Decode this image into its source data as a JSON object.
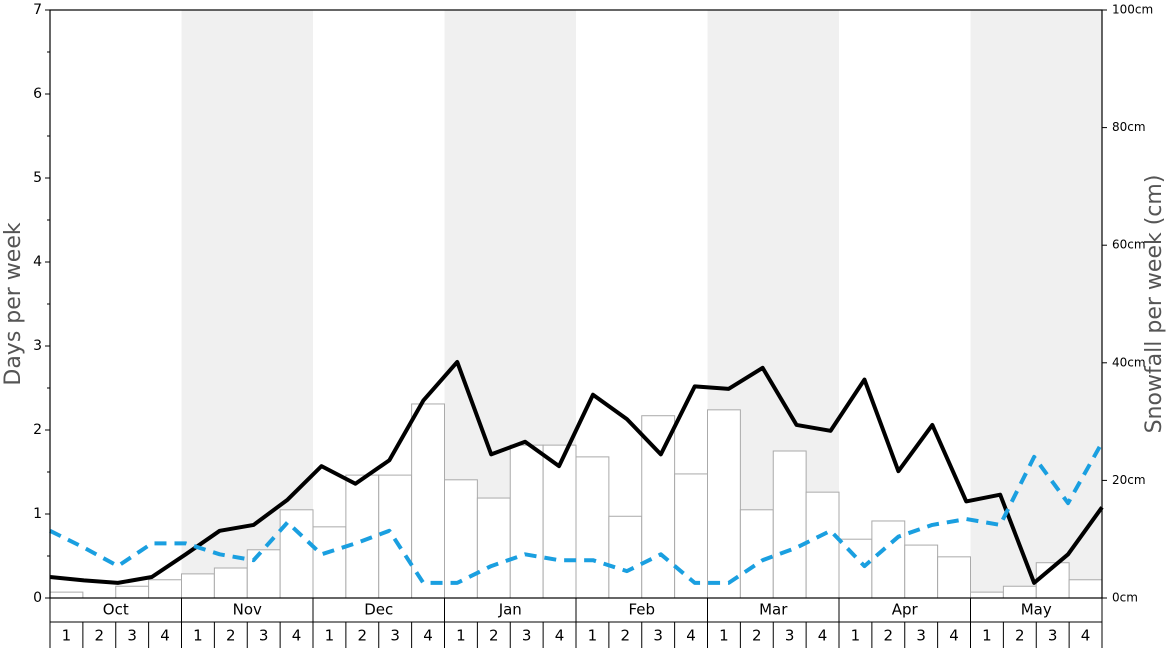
{
  "chart_data": {
    "type": "bar",
    "ylabel": "Days per week",
    "y2label": "Snowfall per week (cm)",
    "months": [
      "Oct",
      "Nov",
      "Dec",
      "Jan",
      "Feb",
      "Mar",
      "Apr",
      "May"
    ],
    "weeks": [
      "1",
      "2",
      "3",
      "4"
    ],
    "ylim": [
      0,
      7
    ],
    "yticks": [
      0,
      1,
      2,
      3,
      4,
      5,
      6,
      7
    ],
    "y2lim": [
      0,
      100
    ],
    "y2ticks": [
      {
        "value": 0,
        "label": "0cm"
      },
      {
        "value": 20,
        "label": "20cm"
      },
      {
        "value": 40,
        "label": "40cm"
      },
      {
        "value": 60,
        "label": "60cm"
      },
      {
        "value": 80,
        "label": "80cm"
      },
      {
        "value": 100,
        "label": "100cm"
      }
    ],
    "band_color": "#f0f0f0",
    "series": [
      {
        "type": "bar",
        "axis": "y2",
        "color": "#ffffff",
        "edge": "#aaaaaa",
        "values": [
          1.0,
          0,
          2.0,
          3.1,
          4.1,
          5.1,
          8.2,
          15.0,
          12.1,
          20.9,
          20.9,
          33.0,
          20.1,
          17.0,
          26.0,
          26.0,
          24.0,
          13.9,
          31.0,
          21.1,
          32.0,
          15.0,
          25.0,
          18.0,
          10.0,
          13.1,
          9.0,
          7.0,
          1.0,
          2.0,
          6.0,
          3.1
        ]
      },
      {
        "type": "line",
        "axis": "y",
        "color": "#000000",
        "dashed": false,
        "values": [
          0.25,
          0.21,
          0.18,
          0.25,
          0.52,
          0.8,
          0.87,
          1.17,
          1.57,
          1.36,
          1.64,
          2.35,
          2.81,
          1.71,
          1.86,
          1.57,
          2.42,
          2.13,
          1.71,
          2.52,
          2.49,
          2.74,
          2.06,
          1.99,
          2.6,
          1.51,
          2.06,
          1.15,
          1.23,
          0.18,
          0.52,
          1.08
        ]
      },
      {
        "type": "line",
        "axis": "y",
        "color": "#1a9fe0",
        "dashed": true,
        "values": [
          0.8,
          0.6,
          0.38,
          0.65,
          0.65,
          0.52,
          0.45,
          0.9,
          0.52,
          0.65,
          0.8,
          0.18,
          0.18,
          0.38,
          0.52,
          0.45,
          0.45,
          0.32,
          0.52,
          0.18,
          0.18,
          0.45,
          0.6,
          0.8,
          0.38,
          0.73,
          0.87,
          0.94,
          0.87,
          1.68,
          1.13,
          1.85
        ]
      }
    ]
  }
}
